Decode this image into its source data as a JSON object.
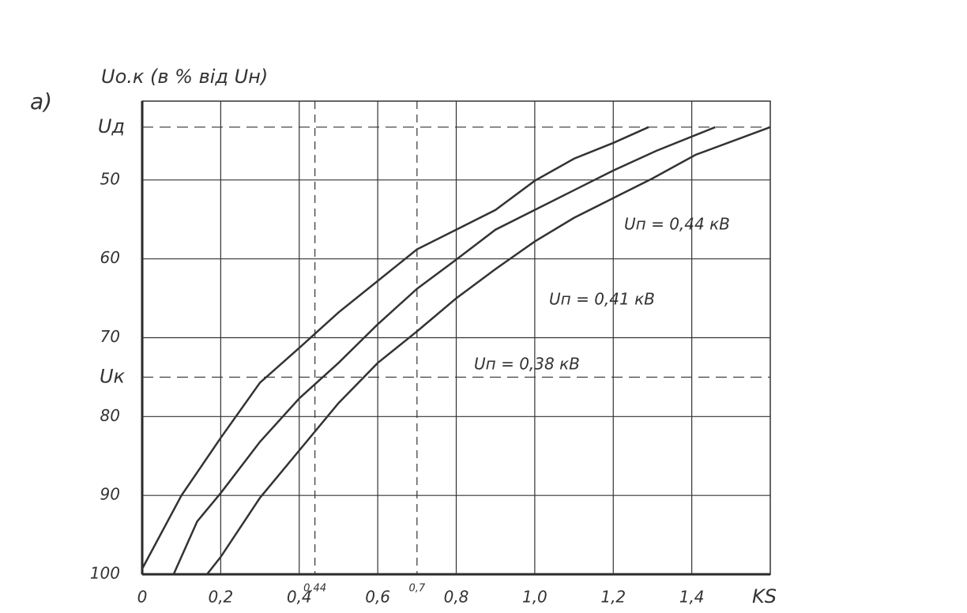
{
  "chart_data": {
    "type": "line",
    "panel_label": "а)",
    "y_label": "Uо.к (в % від Uн)",
    "x_label": "KS",
    "xlim": [
      0,
      1.6
    ],
    "ylim": [
      100,
      40
    ],
    "xticks": [
      0,
      {
        "value": 0.2,
        "label": "0,2"
      },
      {
        "value": 0.4,
        "label": "0,4"
      },
      {
        "value": 0.6,
        "label": "0,6"
      },
      {
        "value": 0.8,
        "label": "0,8"
      },
      {
        "value": 1.0,
        "label": "1,0"
      },
      {
        "value": 1.2,
        "label": "1,2"
      },
      {
        "value": 1.4,
        "label": "1,4"
      }
    ],
    "xrefs": [
      {
        "value": 0.44,
        "label": "0,44"
      },
      {
        "value": 0.7,
        "label": "0,7"
      }
    ],
    "yticks": [
      50,
      60,
      70,
      80,
      90,
      100
    ],
    "yrefs": [
      {
        "value": 43.3,
        "label": "Uд"
      },
      {
        "value": 75,
        "label": "Uк"
      }
    ],
    "grid": true,
    "color": "#333333",
    "series": [
      {
        "name": "Uп = 0,38 кВ",
        "color": "#333333",
        "x": [
          0,
          0.1,
          0.2,
          0.3,
          0.4,
          0.5,
          0.6,
          0.7,
          0.8,
          0.9,
          1.0,
          1.1,
          1.2,
          1.29
        ],
        "values": [
          99.3,
          90,
          82.7,
          75.7,
          71.3,
          66.8,
          62.8,
          58.8,
          56.3,
          53.8,
          50.1,
          47.3,
          45.3,
          43.3
        ]
      },
      {
        "name": "Uп = 0,41 кВ",
        "color": "#333333",
        "x": [
          0.08,
          0.14,
          0.2,
          0.3,
          0.4,
          0.5,
          0.6,
          0.7,
          0.8,
          0.9,
          1.0,
          1.1,
          1.2,
          1.31,
          1.46
        ],
        "values": [
          100,
          93.3,
          89.7,
          83.2,
          77.7,
          73.2,
          68.3,
          63.8,
          60.1,
          56.3,
          53.8,
          51.3,
          48.8,
          46.3,
          43.3
        ]
      },
      {
        "name": "Uп = 0,44 кВ",
        "color": "#333333",
        "x": [
          0.165,
          0.2,
          0.3,
          0.4,
          0.5,
          0.6,
          0.7,
          0.8,
          0.9,
          1.0,
          1.1,
          1.2,
          1.3,
          1.41,
          1.6
        ],
        "values": [
          100,
          97.8,
          90.3,
          84.3,
          78.3,
          73.2,
          69.2,
          65.0,
          61.3,
          57.8,
          54.8,
          52.3,
          49.8,
          46.8,
          43.3
        ]
      }
    ]
  }
}
